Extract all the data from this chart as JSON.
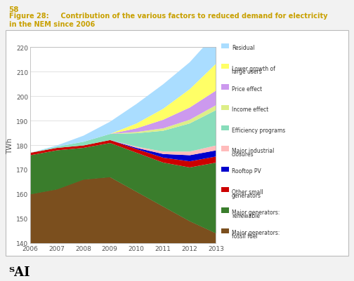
{
  "years": [
    2006,
    2007,
    2008,
    2009,
    2010,
    2011,
    2012,
    2013
  ],
  "title_line1": "Figure 28:     Contribution of the various factors to reduced demand for electricity",
  "title_line2": "in the NEM since 2006",
  "page_number": "58",
  "ylabel": "TWh",
  "ylim": [
    140,
    220
  ],
  "yticks": [
    140,
    150,
    160,
    170,
    180,
    190,
    200,
    210,
    220
  ],
  "layers": [
    {
      "key": "fossil_fuel",
      "label": "Major generators:\nfossil fuel",
      "color": "#7B4F1E",
      "values": [
        160,
        162,
        166,
        167,
        161,
        155,
        149,
        144
      ]
    },
    {
      "key": "renewable",
      "label": "Major generators:\nrenewable",
      "color": "#3A7D2C",
      "values": [
        16,
        16,
        13,
        14,
        16,
        18,
        22,
        29
      ]
    },
    {
      "key": "other_small",
      "label": "Other small\ngenerators",
      "color": "#CC0000",
      "values": [
        1.0,
        1.0,
        1.0,
        1.2,
        1.5,
        2.0,
        2.5,
        2.5
      ]
    },
    {
      "key": "rooftop_pv",
      "label": "Rooftop PV",
      "color": "#0000CC",
      "values": [
        0.0,
        0.0,
        0.0,
        0.0,
        0.5,
        1.5,
        2.5,
        2.5
      ]
    },
    {
      "key": "industrial",
      "label": "Major industrial\nclosures",
      "color": "#FFBBBB",
      "values": [
        0.0,
        0.0,
        0.0,
        0.0,
        0.5,
        1.0,
        1.5,
        2.0
      ]
    },
    {
      "key": "efficiency",
      "label": "Efficiency programs",
      "color": "#88DDBB",
      "values": [
        0.0,
        0.5,
        1.5,
        2.5,
        5.5,
        8.5,
        11.5,
        14.5
      ]
    },
    {
      "key": "income",
      "label": "Income effect",
      "color": "#DDEE88",
      "values": [
        0.0,
        0.0,
        0.0,
        0.0,
        0.5,
        1.0,
        1.5,
        2.0
      ]
    },
    {
      "key": "price",
      "label": "Price effect",
      "color": "#CC99EE",
      "values": [
        0.0,
        0.0,
        0.0,
        0.0,
        1.5,
        3.5,
        5.0,
        6.0
      ]
    },
    {
      "key": "large_users",
      "label": "Lower growth of\nlarge users",
      "color": "#FFFF66",
      "values": [
        0.0,
        0.0,
        0.0,
        0.0,
        2.0,
        4.5,
        7.5,
        11.0
      ]
    },
    {
      "key": "residual",
      "label": "Residual",
      "color": "#AADDFF",
      "values": [
        0.0,
        0.5,
        2.5,
        5.0,
        8.0,
        10.0,
        11.0,
        12.5
      ]
    }
  ],
  "outer_bg": "#f2f2f2",
  "box_bg": "#ffffff",
  "border_color": "#bbbbbb",
  "title_color": "#C8A000",
  "page_num_color": "#C8A000",
  "grid_color": "#dddddd",
  "tick_color": "#555555",
  "tai_color": "#000000"
}
